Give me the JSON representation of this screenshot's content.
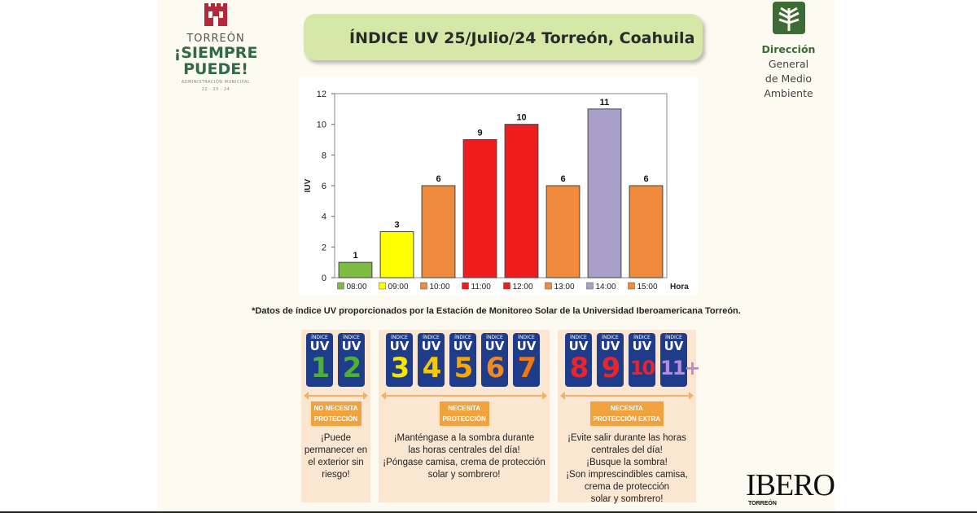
{
  "logo_left": {
    "city": "TORREÓN",
    "slogan_line1": "¡SIEMPRE",
    "slogan_line2": "PUEDE!",
    "admin": "ADMINISTRACIÓN MUNICIPAL",
    "years": "22 · 23 · 24"
  },
  "title": "ÍNDICE UV 25/Julio/24 Torreón, Coahuila",
  "logo_right": {
    "line1_bold": "Dirección",
    "line1_rest": " General",
    "line2": "de Medio Ambiente"
  },
  "chart_data": {
    "type": "bar",
    "categories": [
      "08:00",
      "09:00",
      "10:00",
      "11:00",
      "12:00",
      "13:00",
      "14:00",
      "15:00"
    ],
    "values": [
      1,
      3,
      6,
      9,
      10,
      6,
      11,
      6
    ],
    "colors": [
      "#7dbb41",
      "#ffff00",
      "#f08a3c",
      "#ee1c1c",
      "#ee1c1c",
      "#f08a3c",
      "#a9a0c9",
      "#f08a3c"
    ],
    "ylabel": "IUV",
    "xlabel": "Hora",
    "ylim": [
      0,
      12
    ],
    "yticks": [
      0,
      2,
      4,
      6,
      8,
      10,
      12
    ],
    "legend_position": "bottom",
    "grid": false
  },
  "source_note": "*Datos de índice UV proporcionados por la Estación de Monitoreo Solar de la Universidad Iberoamericana Torreón.",
  "scale": {
    "card_top": "ÍNDICE",
    "card_uv": "UV",
    "groups": [
      {
        "numbers": [
          "1",
          "2"
        ],
        "colors": [
          "#4caf3a",
          "#4caf3a"
        ],
        "badge": [
          "NO NECESITA",
          "PROTECCIÓN"
        ],
        "text": [
          "¡Puede",
          "permanecer en",
          "el exterior sin",
          "riesgo!"
        ]
      },
      {
        "numbers": [
          "3",
          "4",
          "5",
          "6",
          "7"
        ],
        "colors": [
          "#f5e600",
          "#f5c800",
          "#f5a800",
          "#f08a1c",
          "#f07a10"
        ],
        "badge": [
          "NECESITA",
          "PROTECCIÓN"
        ],
        "text": [
          "¡Manténgase a la sombra durante",
          "las horas centrales del día!",
          "¡Póngase camisa, crema de protección",
          "solar y sombrero!"
        ]
      },
      {
        "numbers": [
          "8",
          "9",
          "10",
          "11+"
        ],
        "colors": [
          "#e8242c",
          "#e8242c",
          "#e8242c",
          "#b98ad6"
        ],
        "badge": [
          "NECESITA",
          "PROTECCIÓN EXTRA"
        ],
        "text": [
          "¡Evite salir durante las horas",
          "centrales del día!",
          "¡Busque la sombra!",
          "¡Son imprescindibles camisa,",
          "crema de protección",
          "solar y sombrero!"
        ]
      }
    ]
  },
  "ibero": {
    "name": "IBERO",
    "city": "TORREÓN"
  }
}
